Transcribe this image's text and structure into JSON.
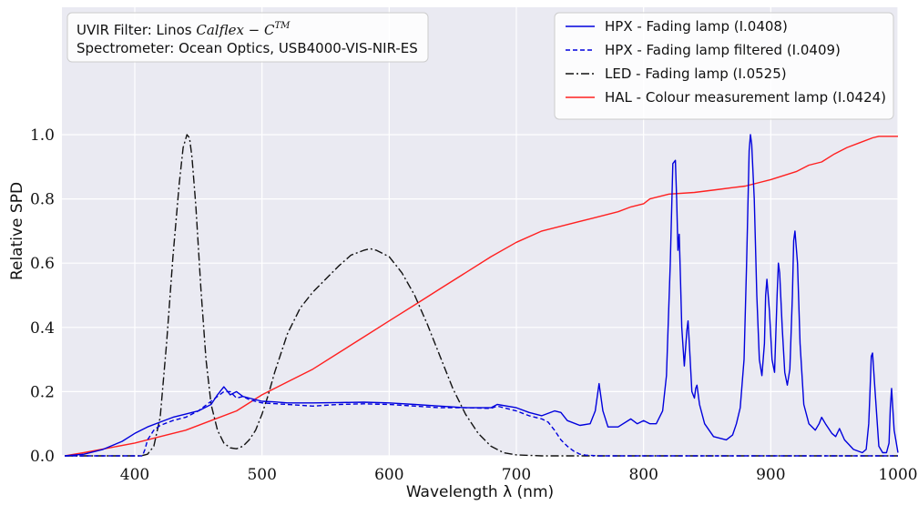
{
  "chart_data": {
    "type": "line",
    "title": "",
    "xlabel": "Wavelength λ (nm)",
    "ylabel": "Relative SPD",
    "xlim": [
      345,
      1000
    ],
    "ylim": [
      0.0,
      1.1
    ],
    "grid": true,
    "legend_position": "top-right",
    "x_ticks": [
      "400",
      "500",
      "600",
      "700",
      "800",
      "900",
      "1000"
    ],
    "x_tick_values": [
      400,
      500,
      600,
      700,
      800,
      900,
      1000
    ],
    "y_ticks": [
      "0.0",
      "0.2",
      "0.4",
      "0.6",
      "0.8",
      "1.0"
    ],
    "y_tick_values": [
      0.0,
      0.2,
      0.4,
      0.6,
      0.8,
      1.0
    ],
    "annotation": {
      "line1": "UVIR Filter: Linos ",
      "line1_math": "Calflex − C",
      "line1_sup": "TM",
      "line2": "Spectrometer: Ocean Optics, USB4000-VIS-NIR-ES"
    },
    "series": [
      {
        "name": "HPX - Fading lamp (I.0408)",
        "color": "#0000dd",
        "style": "solid",
        "x": [
          345,
          360,
          375,
          390,
          400,
          410,
          420,
          430,
          440,
          450,
          460,
          465,
          470,
          475,
          480,
          485,
          490,
          500,
          510,
          520,
          540,
          560,
          580,
          600,
          620,
          640,
          660,
          680,
          685,
          700,
          710,
          720,
          730,
          735,
          740,
          750,
          758,
          762,
          765,
          768,
          772,
          780,
          790,
          795,
          800,
          805,
          810,
          815,
          818,
          821,
          823,
          825,
          826,
          827,
          828,
          829,
          830,
          832,
          834,
          835,
          836,
          838,
          840,
          841,
          842,
          844,
          848,
          855,
          865,
          870,
          873,
          876,
          879,
          881,
          883,
          884,
          885,
          887,
          889,
          891,
          893,
          895,
          896,
          897,
          899,
          901,
          903,
          905,
          906,
          907,
          909,
          911,
          913,
          915,
          917,
          918,
          919,
          921,
          923,
          926,
          930,
          935,
          938,
          940,
          943,
          948,
          951,
          954,
          958,
          965,
          972,
          975,
          977,
          978,
          979,
          980,
          982,
          985,
          988,
          991,
          993,
          994,
          995,
          997,
          1000
        ],
        "y": [
          0.0,
          0.005,
          0.02,
          0.045,
          0.07,
          0.09,
          0.105,
          0.12,
          0.13,
          0.14,
          0.16,
          0.19,
          0.215,
          0.19,
          0.2,
          0.185,
          0.18,
          0.17,
          0.168,
          0.165,
          0.165,
          0.166,
          0.167,
          0.165,
          0.16,
          0.155,
          0.15,
          0.15,
          0.16,
          0.15,
          0.135,
          0.125,
          0.14,
          0.135,
          0.11,
          0.095,
          0.1,
          0.14,
          0.225,
          0.14,
          0.09,
          0.09,
          0.115,
          0.1,
          0.11,
          0.1,
          0.1,
          0.14,
          0.25,
          0.6,
          0.91,
          0.92,
          0.8,
          0.64,
          0.69,
          0.55,
          0.4,
          0.28,
          0.39,
          0.42,
          0.35,
          0.2,
          0.18,
          0.21,
          0.22,
          0.16,
          0.1,
          0.06,
          0.05,
          0.065,
          0.1,
          0.15,
          0.3,
          0.6,
          0.95,
          1.0,
          0.97,
          0.8,
          0.5,
          0.3,
          0.25,
          0.35,
          0.5,
          0.55,
          0.45,
          0.3,
          0.26,
          0.5,
          0.6,
          0.57,
          0.4,
          0.26,
          0.22,
          0.27,
          0.5,
          0.67,
          0.7,
          0.6,
          0.35,
          0.16,
          0.1,
          0.08,
          0.1,
          0.12,
          0.1,
          0.07,
          0.06,
          0.085,
          0.05,
          0.02,
          0.01,
          0.02,
          0.1,
          0.2,
          0.31,
          0.32,
          0.2,
          0.03,
          0.01,
          0.01,
          0.04,
          0.15,
          0.21,
          0.08,
          0.01
        ]
      },
      {
        "name": "HPX - Fading lamp filtered (I.0409)",
        "color": "#0000dd",
        "style": "dashed",
        "x": [
          345,
          400,
          406,
          408,
          410,
          415,
          420,
          430,
          440,
          450,
          460,
          470,
          475,
          480,
          485,
          490,
          500,
          520,
          540,
          560,
          580,
          600,
          620,
          640,
          660,
          680,
          685,
          700,
          710,
          720,
          725,
          730,
          735,
          740,
          745,
          750,
          755,
          760,
          765,
          1000
        ],
        "y": [
          0.0,
          0.0,
          0.0,
          0.02,
          0.05,
          0.08,
          0.095,
          0.11,
          0.12,
          0.14,
          0.17,
          0.2,
          0.2,
          0.18,
          0.185,
          0.175,
          0.165,
          0.16,
          0.155,
          0.16,
          0.162,
          0.16,
          0.155,
          0.15,
          0.15,
          0.148,
          0.155,
          0.14,
          0.125,
          0.115,
          0.105,
          0.08,
          0.05,
          0.03,
          0.015,
          0.005,
          0.002,
          0.001,
          0.0,
          0.0
        ]
      },
      {
        "name": "LED - Fading lamp (I.0525)",
        "color": "#111111",
        "style": "dashdot",
        "x": [
          345,
          405,
          410,
          415,
          420,
          425,
          430,
          435,
          438,
          441,
          443,
          445,
          448,
          452,
          456,
          460,
          465,
          470,
          475,
          480,
          485,
          490,
          495,
          500,
          505,
          510,
          520,
          530,
          540,
          550,
          560,
          570,
          580,
          585,
          590,
          600,
          610,
          620,
          630,
          640,
          650,
          660,
          670,
          680,
          690,
          700,
          720,
          750,
          1000
        ],
        "y": [
          0.0,
          0.0,
          0.005,
          0.03,
          0.12,
          0.35,
          0.62,
          0.85,
          0.96,
          1.0,
          0.99,
          0.93,
          0.78,
          0.52,
          0.3,
          0.16,
          0.08,
          0.04,
          0.025,
          0.022,
          0.03,
          0.05,
          0.08,
          0.13,
          0.19,
          0.26,
          0.38,
          0.46,
          0.51,
          0.55,
          0.59,
          0.625,
          0.64,
          0.645,
          0.64,
          0.62,
          0.57,
          0.5,
          0.41,
          0.31,
          0.21,
          0.13,
          0.07,
          0.03,
          0.01,
          0.003,
          0.0,
          0.0,
          0.0
        ]
      },
      {
        "name": "HAL - Colour measurement lamp (I.0424)",
        "color": "#ff2020",
        "style": "solid",
        "x": [
          345,
          360,
          380,
          400,
          420,
          440,
          460,
          480,
          500,
          520,
          540,
          560,
          580,
          600,
          620,
          640,
          660,
          680,
          700,
          720,
          740,
          760,
          780,
          790,
          800,
          805,
          820,
          840,
          860,
          870,
          880,
          900,
          920,
          930,
          940,
          950,
          960,
          970,
          980,
          985,
          990,
          1000
        ],
        "y": [
          0.0,
          0.01,
          0.025,
          0.04,
          0.06,
          0.08,
          0.11,
          0.14,
          0.19,
          0.23,
          0.27,
          0.32,
          0.37,
          0.42,
          0.47,
          0.52,
          0.57,
          0.62,
          0.665,
          0.7,
          0.72,
          0.74,
          0.76,
          0.775,
          0.785,
          0.8,
          0.815,
          0.82,
          0.83,
          0.835,
          0.84,
          0.86,
          0.885,
          0.905,
          0.915,
          0.94,
          0.96,
          0.975,
          0.99,
          0.995,
          0.995,
          0.995
        ]
      }
    ]
  }
}
